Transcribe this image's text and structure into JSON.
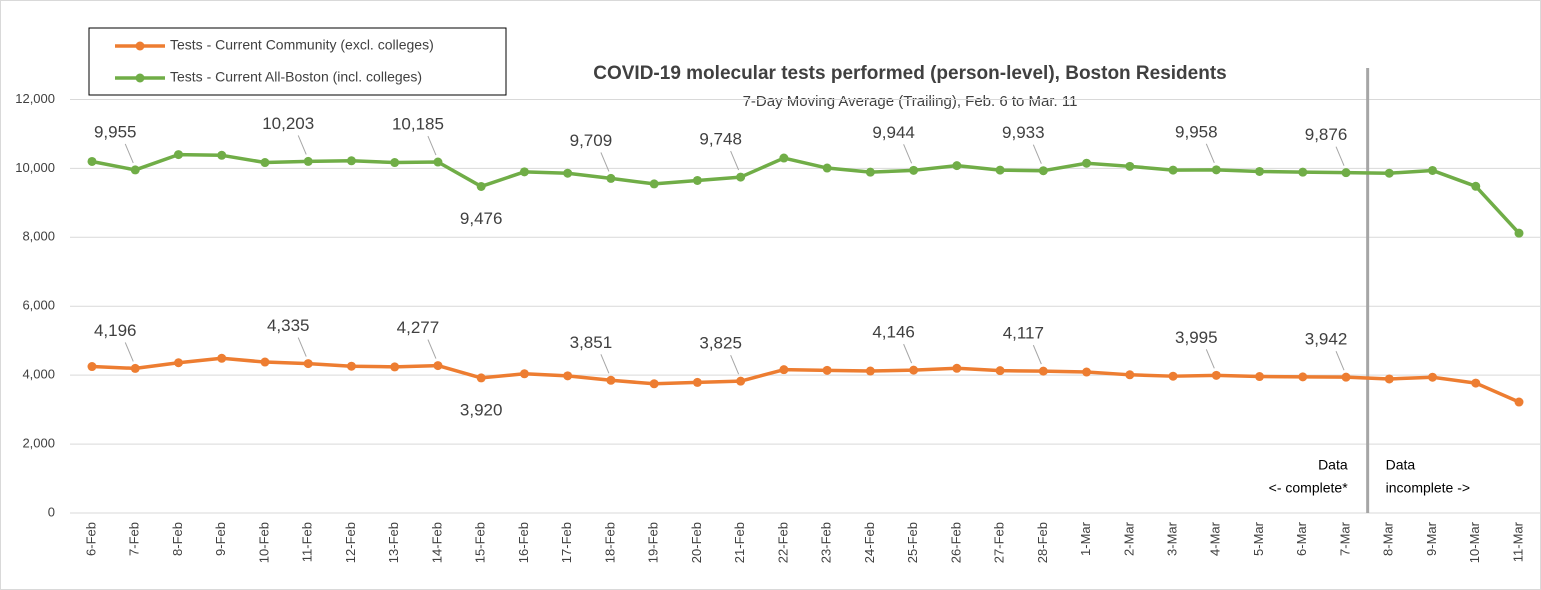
{
  "chart_data": {
    "type": "line",
    "title": "COVID-19 molecular tests performed (person-level), Boston Residents",
    "subtitle": "7-Day Moving Average (Trailing), Feb. 6 to Mar. 11",
    "categories": [
      "6-Feb",
      "7-Feb",
      "8-Feb",
      "9-Feb",
      "10-Feb",
      "11-Feb",
      "12-Feb",
      "13-Feb",
      "14-Feb",
      "15-Feb",
      "16-Feb",
      "17-Feb",
      "18-Feb",
      "19-Feb",
      "20-Feb",
      "21-Feb",
      "22-Feb",
      "23-Feb",
      "24-Feb",
      "25-Feb",
      "26-Feb",
      "27-Feb",
      "28-Feb",
      "1-Mar",
      "2-Mar",
      "3-Mar",
      "4-Mar",
      "5-Mar",
      "6-Mar",
      "7-Mar",
      "8-Mar",
      "9-Mar",
      "10-Mar",
      "11-Mar"
    ],
    "series": [
      {
        "name": "Tests - Current Community (excl. colleges)",
        "color": "#ed7d31",
        "values": [
          4250,
          4196,
          4360,
          4490,
          4380,
          4335,
          4260,
          4240,
          4277,
          3920,
          4040,
          3980,
          3851,
          3750,
          3790,
          3825,
          4160,
          4140,
          4120,
          4146,
          4200,
          4130,
          4117,
          4090,
          4010,
          3970,
          3995,
          3960,
          3950,
          3942,
          3890,
          3940,
          3770,
          3220
        ],
        "value_labels": [
          null,
          "4,196",
          null,
          null,
          null,
          "4,335",
          null,
          null,
          "4,277",
          "3,920",
          null,
          null,
          "3,851",
          null,
          null,
          "3,825",
          null,
          null,
          null,
          "4,146",
          null,
          null,
          "4,117",
          null,
          null,
          null,
          "3,995",
          null,
          null,
          "3,942",
          null,
          null,
          null,
          null
        ]
      },
      {
        "name": "Tests - Current All-Boston (incl. colleges)",
        "color": "#70ad47",
        "values": [
          10200,
          9955,
          10400,
          10380,
          10170,
          10203,
          10220,
          10170,
          10185,
          9476,
          9900,
          9860,
          9709,
          9550,
          9650,
          9748,
          10300,
          10010,
          9890,
          9944,
          10080,
          9950,
          9933,
          10150,
          10060,
          9950,
          9958,
          9910,
          9890,
          9876,
          9860,
          9940,
          9480,
          8120
        ],
        "value_labels": [
          null,
          "9,955",
          null,
          null,
          null,
          "10,203",
          null,
          null,
          "10,185",
          "9,476",
          null,
          null,
          "9,709",
          null,
          null,
          "9,748",
          null,
          null,
          null,
          "9,944",
          null,
          null,
          "9,933",
          null,
          null,
          null,
          "9,958",
          null,
          null,
          "9,876",
          null,
          null,
          null,
          null
        ]
      }
    ],
    "ylim": [
      0,
      13000
    ],
    "yticks": [
      0,
      {
        "value": 2000,
        "label": "2,000"
      },
      {
        "value": 4000,
        "label": "4,000"
      },
      {
        "value": 6000,
        "label": "6,000"
      },
      {
        "value": 8000,
        "label": "8,000"
      },
      {
        "value": 10000,
        "label": "10,000"
      },
      {
        "value": 12000,
        "label": "12,000"
      }
    ],
    "grid": true,
    "legend": "top-left",
    "annotations": [
      "Data",
      "<- complete*",
      "Data",
      "incomplete ->"
    ]
  }
}
